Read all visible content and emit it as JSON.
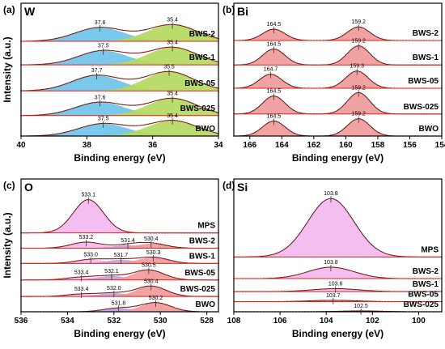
{
  "chart_data": [
    {
      "type": "line",
      "panel_label": "(a)",
      "element": "W",
      "xlabel": "Binding energy (eV)",
      "ylabel": "Intensity (a.u.)",
      "xlim": [
        40,
        34
      ],
      "xticks": [
        "40",
        "38",
        "36",
        "34"
      ],
      "peak_width": 0.75,
      "stack_heights": [
        38,
        38,
        42,
        40,
        33
      ],
      "series": [
        {
          "name": "BWS-2",
          "peaks": [
            {
              "x": 37.6,
              "label": "37.6",
              "h": 0.68,
              "color": "#6fc3ea"
            },
            {
              "x": 35.4,
              "label": "35.4",
              "h": 0.82,
              "color": "#b4d95f"
            }
          ]
        },
        {
          "name": "BWS-1",
          "peaks": [
            {
              "x": 37.5,
              "label": "37.5",
              "h": 0.7,
              "color": "#6fc3ea"
            },
            {
              "x": 35.4,
              "label": "35.4",
              "h": 0.86,
              "color": "#b4d95f"
            }
          ]
        },
        {
          "name": "BWS-05",
          "peaks": [
            {
              "x": 37.7,
              "label": "37.7",
              "h": 0.68,
              "color": "#6fc3ea"
            },
            {
              "x": 35.5,
              "label": "35.5",
              "h": 0.84,
              "color": "#b4d95f"
            }
          ]
        },
        {
          "name": "BWS-025",
          "peaks": [
            {
              "x": 37.6,
              "label": "37.6",
              "h": 0.62,
              "color": "#6fc3ea"
            },
            {
              "x": 35.4,
              "label": "35.4",
              "h": 0.8,
              "color": "#b4d95f"
            }
          ]
        },
        {
          "name": "BWO",
          "peaks": [
            {
              "x": 37.5,
              "label": "37.5",
              "h": 0.72,
              "color": "#6fc3ea"
            },
            {
              "x": 35.4,
              "label": "35.4",
              "h": 0.9,
              "color": "#b4d95f"
            }
          ]
        }
      ]
    },
    {
      "type": "line",
      "panel_label": "(b)",
      "element": "Bi",
      "xlabel": "Binding energy (eV)",
      "ylabel": "",
      "xlim": [
        167,
        154
      ],
      "xticks": [
        "166",
        "164",
        "162",
        "160",
        "158",
        "156",
        "154"
      ],
      "peak_width": 0.7,
      "stack_heights": [
        37,
        40,
        38,
        42,
        36
      ],
      "series": [
        {
          "name": "BWS-2",
          "peaks": [
            {
              "x": 164.5,
              "label": "164.5",
              "h": 0.58,
              "color": "#f09b9b"
            },
            {
              "x": 159.2,
              "label": "159.2",
              "h": 0.7,
              "color": "#f09b9b"
            }
          ]
        },
        {
          "name": "BWS-1",
          "peaks": [
            {
              "x": 164.5,
              "label": "164.5",
              "h": 0.75,
              "color": "#f09b9b"
            },
            {
              "x": 159.2,
              "label": "159.2",
              "h": 0.9,
              "color": "#f09b9b"
            }
          ]
        },
        {
          "name": "BWS-05",
          "peaks": [
            {
              "x": 164.7,
              "label": "164.7",
              "h": 0.7,
              "color": "#f09b9b"
            },
            {
              "x": 159.3,
              "label": "159.3",
              "h": 0.86,
              "color": "#f09b9b"
            }
          ]
        },
        {
          "name": "BWS-025",
          "peaks": [
            {
              "x": 164.5,
              "label": "164.5",
              "h": 0.8,
              "color": "#f09b9b"
            },
            {
              "x": 159.2,
              "label": "159.2",
              "h": 0.95,
              "color": "#f09b9b"
            }
          ]
        },
        {
          "name": "BWO",
          "peaks": [
            {
              "x": 164.5,
              "label": "164.5",
              "h": 0.8,
              "color": "#f09b9b"
            },
            {
              "x": 159.2,
              "label": "159.2",
              "h": 0.92,
              "color": "#f09b9b"
            }
          ]
        }
      ]
    },
    {
      "type": "line",
      "panel_label": "(c)",
      "element": "O",
      "xlabel": "Binding energy (eV)",
      "ylabel": "Intensity (a.u.)",
      "xlim": [
        536,
        527.5
      ],
      "xticks": [
        "536",
        "534",
        "532",
        "530",
        "528"
      ],
      "peak_width": 0.65,
      "stack_heights": [
        62,
        24,
        24,
        26,
        26,
        24
      ],
      "series": [
        {
          "name": "MPS",
          "peaks": [
            {
              "x": 533.1,
              "label": "533.1",
              "h": 0.92,
              "color": "#f3b9ef"
            }
          ]
        },
        {
          "name": "BWS-2",
          "peaks": [
            {
              "x": 533.2,
              "label": "533.2",
              "h": 0.5,
              "color": "#f3b9ef"
            },
            {
              "x": 531.4,
              "label": "531.4",
              "h": 0.25,
              "color": "#b8a2e0"
            },
            {
              "x": 530.4,
              "label": "530.4",
              "h": 0.38,
              "color": "#f09b9b"
            }
          ]
        },
        {
          "name": "BWS-1",
          "peaks": [
            {
              "x": 533.0,
              "label": "533.0",
              "h": 0.32,
              "color": "#f3b9ef"
            },
            {
              "x": 531.7,
              "label": "531.7",
              "h": 0.3,
              "color": "#b8a2e0"
            },
            {
              "x": 530.3,
              "label": "530.3",
              "h": 0.5,
              "color": "#f09b9b"
            }
          ]
        },
        {
          "name": "BWS-05",
          "peaks": [
            {
              "x": 533.4,
              "label": "533.4",
              "h": 0.2,
              "color": "#f3b9ef"
            },
            {
              "x": 532.1,
              "label": "532.1",
              "h": 0.3,
              "color": "#b8a2e0"
            },
            {
              "x": 530.5,
              "label": "530.5",
              "h": 0.75,
              "color": "#f09b9b"
            }
          ]
        },
        {
          "name": "BWS-025",
          "peaks": [
            {
              "x": 533.4,
              "label": "533.4",
              "h": 0.18,
              "color": "#f3b9ef"
            },
            {
              "x": 532.0,
              "label": "532.0",
              "h": 0.25,
              "color": "#b8a2e0"
            },
            {
              "x": 530.4,
              "label": "530.4",
              "h": 0.78,
              "color": "#f09b9b"
            }
          ]
        },
        {
          "name": "BWO",
          "peaks": [
            {
              "x": 531.8,
              "label": "531.8",
              "h": 0.3,
              "color": "#b8a2e0"
            },
            {
              "x": 530.2,
              "label": "530.2",
              "h": 0.75,
              "color": "#f09b9b"
            }
          ]
        }
      ]
    },
    {
      "type": "line",
      "panel_label": "(d)",
      "element": "Si",
      "xlabel": "Binding energy (eV)",
      "ylabel": "",
      "xlim": [
        108,
        99
      ],
      "xticks": [
        "108",
        "106",
        "104",
        "102",
        "100"
      ],
      "peak_width": 1.0,
      "stack_heights": [
        88,
        30,
        18,
        14,
        14
      ],
      "series": [
        {
          "name": "MPS",
          "peaks": [
            {
              "x": 103.8,
              "label": "103.8",
              "h": 0.97,
              "color": "#f3b9ef"
            }
          ]
        },
        {
          "name": "BWS-2",
          "peaks": [
            {
              "x": 103.8,
              "label": "103.8",
              "h": 0.62,
              "color": "#f3b9ef"
            }
          ]
        },
        {
          "name": "BWS-1",
          "peaks": [
            {
              "x": 103.6,
              "label": "103.6",
              "h": 0.3,
              "color": "#f3b9ef"
            }
          ]
        },
        {
          "name": "BWS-05",
          "peaks": [
            {
              "x": 103.7,
              "label": "103.7",
              "h": 0.2,
              "color": "#f3b9ef"
            }
          ]
        },
        {
          "name": "BWS-025",
          "peaks": [
            {
              "x": 102.5,
              "label": "102.5",
              "h": 0.12,
              "color": "#f3b9ef"
            }
          ]
        }
      ]
    }
  ]
}
